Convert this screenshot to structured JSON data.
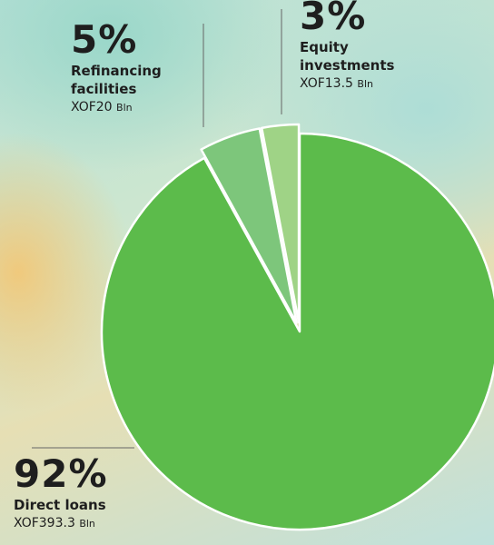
{
  "chart_data": {
    "type": "pie",
    "categories": [
      "Direct loans",
      "Refinancing facilities",
      "Equity investments"
    ],
    "values": [
      92,
      5,
      3
    ],
    "value_labels": [
      "92%",
      "5%",
      "3%"
    ],
    "amounts": [
      "XOF393.3",
      "XOF20",
      "XOF13.5"
    ],
    "amount_unit": "Bln",
    "colors": [
      "#5cbb4b",
      "#7dc67b",
      "#9fd386"
    ]
  }
}
